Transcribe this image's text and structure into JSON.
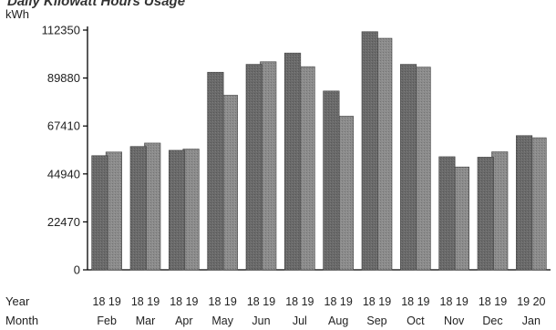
{
  "chart_data": {
    "type": "bar",
    "title": "Daily Kilowatt Hours Usage",
    "ylabel": "kWh",
    "ylim": [
      0,
      112350
    ],
    "yticks": [
      0,
      22470,
      44940,
      67410,
      89880,
      112350
    ],
    "grid": false,
    "legend": "none",
    "row_labels": {
      "year": "Year",
      "month": "Month"
    },
    "categories": [
      "Feb",
      "Mar",
      "Apr",
      "May",
      "Jun",
      "Jul",
      "Aug",
      "Sep",
      "Oct",
      "Nov",
      "Dec",
      "Jan"
    ],
    "year_labels": [
      [
        "18",
        "19"
      ],
      [
        "18",
        "19"
      ],
      [
        "18",
        "19"
      ],
      [
        "18",
        "19"
      ],
      [
        "18",
        "19"
      ],
      [
        "18",
        "19"
      ],
      [
        "18",
        "19"
      ],
      [
        "18",
        "19"
      ],
      [
        "18",
        "19"
      ],
      [
        "18",
        "19"
      ],
      [
        "18",
        "19"
      ],
      [
        "19",
        "20"
      ]
    ],
    "series": [
      {
        "values": [
          53500,
          57800,
          56000,
          92600,
          96300,
          101600,
          83800,
          111600,
          96300,
          53000,
          52800,
          62900
        ]
      },
      {
        "values": [
          55200,
          59400,
          56600,
          81800,
          97500,
          95200,
          72000,
          108500,
          95000,
          48200,
          55300,
          61900
        ]
      }
    ],
    "colors": {
      "bar_front": "#6a6a6a",
      "bar_back": "#8c8c8c",
      "axis": "#000000"
    }
  }
}
